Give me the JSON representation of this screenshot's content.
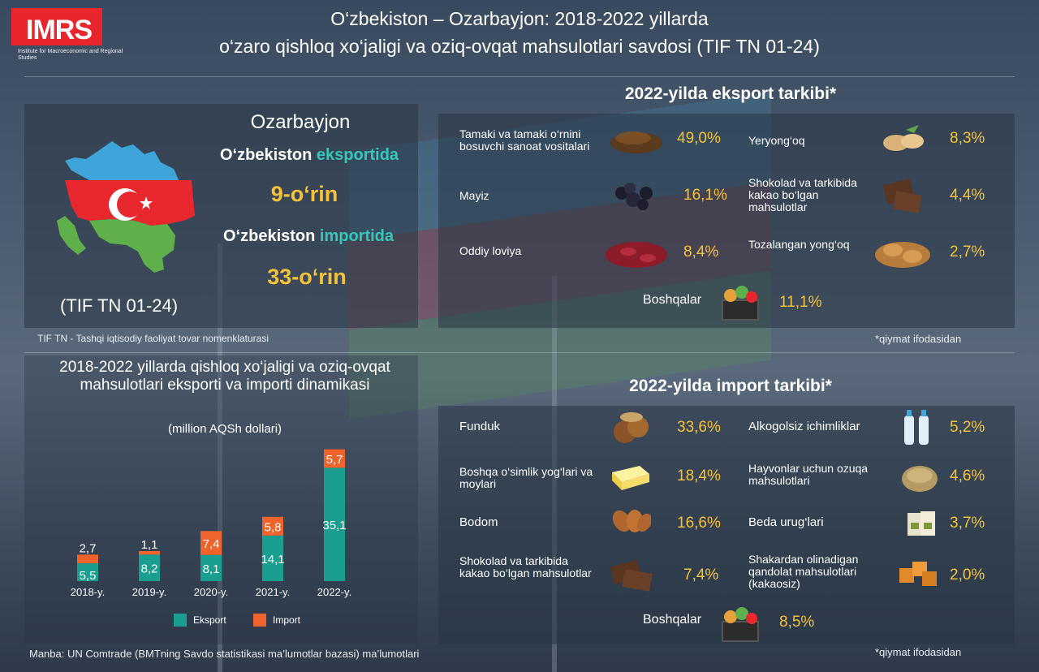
{
  "header": {
    "logo": "IMRS",
    "logo_subtitle": "Institute for Macroeconomic and Regional Studies",
    "title_line1": "O‘zbekiston – Ozarbayjon: 2018-2022 yillarda",
    "title_line2": "o‘zaro qishloq xo‘jaligi va oziq-ovqat mahsulotlari savdosi (TIF TN 01-24)"
  },
  "country_panel": {
    "country": "Ozarbayjon",
    "export_prefix": "O‘zbekiston ",
    "export_word": "eksportida",
    "export_rank": "9-o‘rin",
    "import_prefix": "O‘zbekiston ",
    "import_word": "importida",
    "import_rank": "33-o‘rin",
    "code": "(TIF TN 01-24)",
    "footnote": "TIF TN - Tashqi iqtisodiy faoliyat tovar nomenklaturasi",
    "flag_colors": {
      "blue": "#3fa4da",
      "red": "#e8272e",
      "green": "#5fb04a"
    }
  },
  "export": {
    "title": "2022-yilda eksport tarkibi*",
    "items": [
      {
        "name": "Tamaki va tamaki o‘rnini bosuvchi sanoat vositalari",
        "pct": "49,0%",
        "icon": "tobacco-icon"
      },
      {
        "name": "Yeryong‘oq",
        "pct": "8,3%",
        "icon": "peanut-icon"
      },
      {
        "name": "Mayiz",
        "pct": "16,1%",
        "icon": "raisin-icon"
      },
      {
        "name": "Shokolad va tarkibida kakao bo‘lgan mahsulotlar",
        "pct": "4,4%",
        "icon": "chocolate-icon"
      },
      {
        "name": "Oddiy loviya",
        "pct": "8,4%",
        "icon": "bean-icon"
      },
      {
        "name": "Tozalangan yong‘oq",
        "pct": "2,7%",
        "icon": "walnut-icon"
      }
    ],
    "other": {
      "name": "Boshqalar",
      "pct": "11,1%",
      "icon": "basket-icon"
    },
    "note": "*qiymat ifodasidan"
  },
  "import": {
    "title": "2022-yilda import tarkibi*",
    "items": [
      {
        "name": "Funduk",
        "pct": "33,6%",
        "icon": "hazelnut-icon"
      },
      {
        "name": "Alkogolsiz ichimliklar",
        "pct": "5,2%",
        "icon": "water-bottle-icon"
      },
      {
        "name": "Boshqa o‘simlik yog‘lari va moylari",
        "pct": "18,4%",
        "icon": "butter-icon"
      },
      {
        "name": "Hayvonlar uchun ozuqa mahsulotlari",
        "pct": "4,6%",
        "icon": "feed-icon"
      },
      {
        "name": "Bodom",
        "pct": "16,6%",
        "icon": "almond-icon"
      },
      {
        "name": "Beda urug‘lari",
        "pct": "3,7%",
        "icon": "seed-bag-icon"
      },
      {
        "name": "Shokolad va tarkibida kakao bo‘lgan mahsulotlar",
        "pct": "7,4%",
        "icon": "chocolate-icon"
      },
      {
        "name": "Shakardan olinadigan qandolat mahsulotlari (kakaosiz)",
        "pct": "2,0%",
        "icon": "caramel-icon"
      }
    ],
    "other": {
      "name": "Boshqalar",
      "pct": "8,5%",
      "icon": "basket-icon"
    },
    "note": "*qiymat ifodasidan"
  },
  "chart_data": {
    "type": "bar",
    "stacked": true,
    "title": "2018-2022 yillarda qishloq xo‘jaligi va oziq-ovqat mahsulotlari eksporti va importi dinamikasi",
    "subtitle": "(million AQSh dollari)",
    "categories": [
      "2018-y.",
      "2019-y.",
      "2020-y.",
      "2021-y.",
      "2022-y."
    ],
    "series": [
      {
        "name": "Eksport",
        "values": [
          5.5,
          8.2,
          8.1,
          14.1,
          35.1
        ],
        "labels": [
          "5,5",
          "8,2",
          "8,1",
          "14,1",
          "35,1"
        ],
        "color": "#1a9e8f"
      },
      {
        "name": "Import",
        "values": [
          2.7,
          1.1,
          7.4,
          5.8,
          5.7
        ],
        "labels": [
          "2,7",
          "1,1",
          "7,4",
          "5,8",
          "5,7"
        ],
        "color": "#f0632b"
      }
    ],
    "legend": "bottom",
    "grid": false
  },
  "source": "Manba: UN Comtrade (BMTning Savdo statistikasi ma’lumotlar bazasi) ma’lumotlari"
}
